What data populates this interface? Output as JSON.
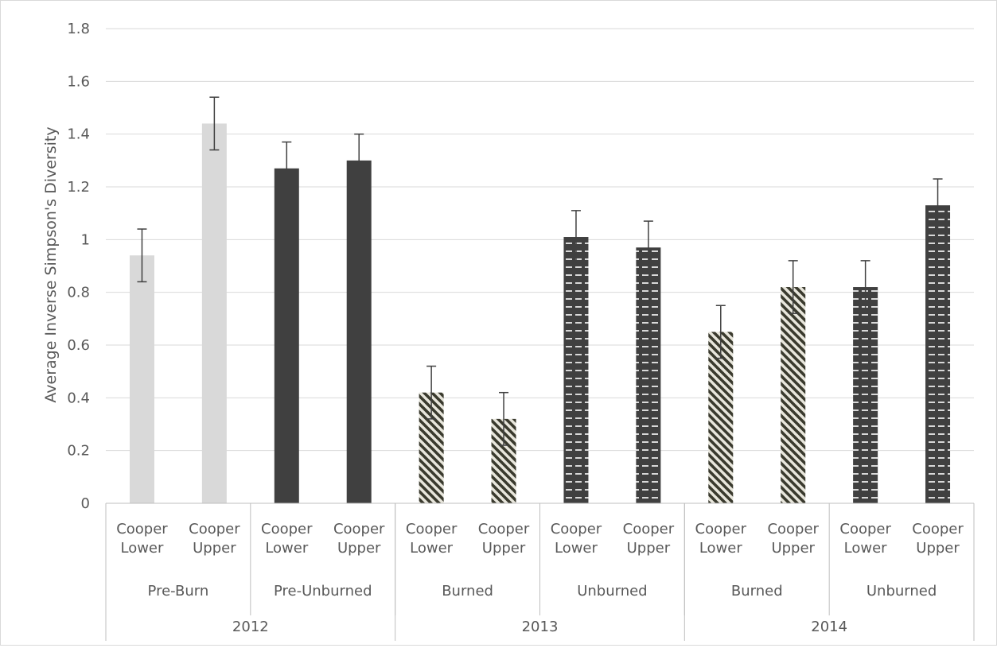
{
  "chart_data": {
    "type": "bar",
    "title": "",
    "xlabel": "",
    "ylabel": "Average Inverse Simpson's Diversity",
    "ylim": [
      0,
      1.8
    ],
    "yticks": [
      "0",
      "0.2",
      "0.4",
      "0.6",
      "0.8",
      "1",
      "1.2",
      "1.4",
      "1.6",
      "1.8"
    ],
    "grid": true,
    "categories": [
      {
        "site": [
          "Cooper",
          "Lower"
        ],
        "treatment": "Pre-Burn",
        "year": "2012"
      },
      {
        "site": [
          "Cooper",
          "Upper"
        ],
        "treatment": "Pre-Burn",
        "year": "2012"
      },
      {
        "site": [
          "Cooper",
          "Lower"
        ],
        "treatment": "Pre-Unburned",
        "year": "2012"
      },
      {
        "site": [
          "Cooper",
          "Upper"
        ],
        "treatment": "Pre-Unburned",
        "year": "2012"
      },
      {
        "site": [
          "Cooper",
          "Lower"
        ],
        "treatment": "Burned",
        "year": "2013"
      },
      {
        "site": [
          "Cooper",
          "Upper"
        ],
        "treatment": "Burned",
        "year": "2013"
      },
      {
        "site": [
          "Cooper",
          "Lower"
        ],
        "treatment": "Unburned",
        "year": "2013"
      },
      {
        "site": [
          "Cooper",
          "Upper"
        ],
        "treatment": "Unburned",
        "year": "2013"
      },
      {
        "site": [
          "Cooper",
          "Lower"
        ],
        "treatment": "Burned",
        "year": "2014"
      },
      {
        "site": [
          "Cooper",
          "Upper"
        ],
        "treatment": "Burned",
        "year": "2014"
      },
      {
        "site": [
          "Cooper",
          "Lower"
        ],
        "treatment": "Unburned",
        "year": "2014"
      },
      {
        "site": [
          "Cooper",
          "Upper"
        ],
        "treatment": "Unburned",
        "year": "2014"
      }
    ],
    "treatment_groups": [
      {
        "label": "Pre-Burn",
        "count": 2
      },
      {
        "label": "Pre-Unburned",
        "count": 2
      },
      {
        "label": "Burned",
        "count": 2
      },
      {
        "label": "Unburned",
        "count": 2
      },
      {
        "label": "Burned",
        "count": 2
      },
      {
        "label": "Unburned",
        "count": 2
      }
    ],
    "year_groups": [
      {
        "label": "2012",
        "count": 4
      },
      {
        "label": "2013",
        "count": 4
      },
      {
        "label": "2014",
        "count": 4
      }
    ],
    "values": [
      0.94,
      1.44,
      1.27,
      1.3,
      0.42,
      0.32,
      1.01,
      0.97,
      0.65,
      0.82,
      0.82,
      1.13
    ],
    "errors": [
      0.1,
      0.1,
      0.1,
      0.1,
      0.1,
      0.1,
      0.1,
      0.1,
      0.1,
      0.1,
      0.1,
      0.1
    ],
    "bar_styles": [
      "light",
      "light",
      "dark",
      "dark",
      "hatched",
      "hatched",
      "dashed",
      "dashed",
      "hatched",
      "hatched",
      "dashed",
      "dashed"
    ],
    "colors": {
      "light": "#d9d9d9",
      "dark": "#404040",
      "hatch_fg": "#3a3a2e",
      "hatch_bg": "#e8e6dc",
      "dash_fg": "#404040",
      "dash_line": "#ffffff",
      "grid": "#d9d9d9",
      "axis": "#bfbfbf",
      "text": "#595959",
      "error_bar": "#404040"
    }
  }
}
